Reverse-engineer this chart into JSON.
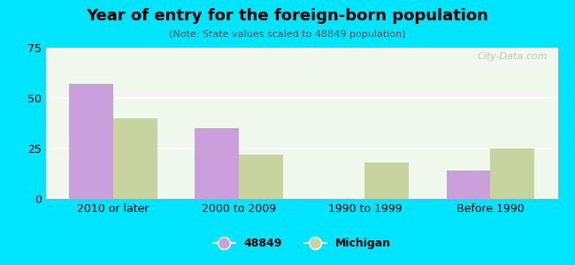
{
  "title": "Year of entry for the foreign-born population",
  "subtitle": "(Note: State values scaled to 48849 population)",
  "categories": [
    "2010 or later",
    "2000 to 2009",
    "1990 to 1999",
    "Before 1990"
  ],
  "values_48849": [
    57,
    35,
    0,
    14
  ],
  "values_michigan": [
    40,
    22,
    18,
    25
  ],
  "bar_color_48849": "#c9a0dc",
  "bar_color_michigan": "#c8d4a0",
  "background_outer": "#00e5ff",
  "background_chart": "#f0f8ee",
  "ylim": [
    0,
    75
  ],
  "yticks": [
    0,
    25,
    50,
    75
  ],
  "bar_width": 0.35,
  "legend_label_1": "48849",
  "legend_label_2": "Michigan",
  "watermark": "City-Data.com"
}
